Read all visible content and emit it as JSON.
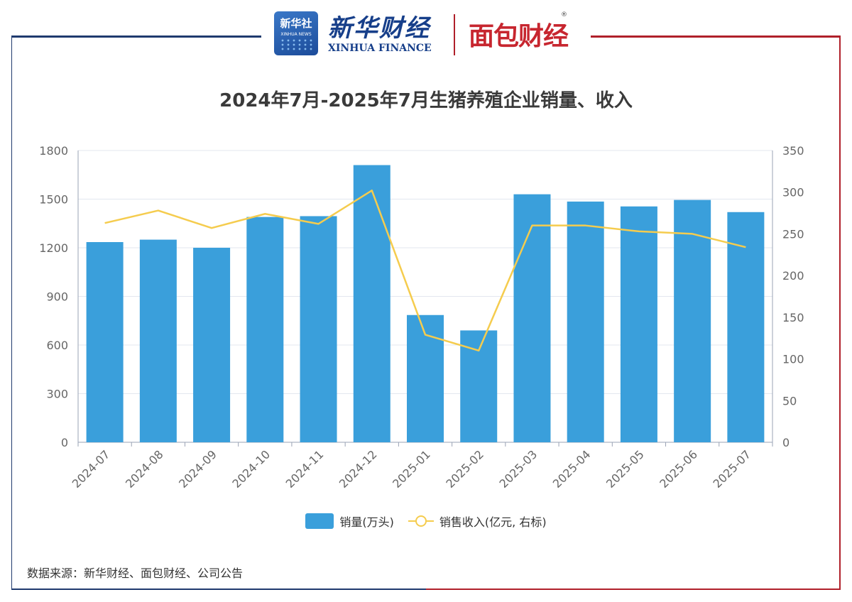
{
  "header": {
    "logo_xinhua_badge": "新华社",
    "logo_xinhua_badge_en": "XINHUA NEWS",
    "logo_xinhua_cn": "新华财经",
    "logo_xinhua_en": "XINHUA FINANCE",
    "logo_mianbao": "面包财经",
    "reg_mark": "®"
  },
  "footer": {
    "source": "数据来源：新华财经、面包财经、公司公告"
  },
  "colors": {
    "bar": "#3a9fdb",
    "line": "#f5cc4e",
    "grid": "#e3e7ef",
    "axis": "#666666"
  },
  "chart_data": {
    "type": "bar",
    "title": "2024年7月-2025年7月生猪养殖企业销量、收入",
    "categories": [
      "2024-07",
      "2024-08",
      "2024-09",
      "2024-10",
      "2024-11",
      "2024-12",
      "2025-01",
      "2025-02",
      "2025-03",
      "2025-04",
      "2025-05",
      "2025-06",
      "2025-07"
    ],
    "y_left": {
      "min": 0,
      "max": 1800,
      "ticks": [
        0,
        300,
        600,
        900,
        1200,
        1500,
        1800
      ]
    },
    "y_right": {
      "min": 0,
      "max": 350,
      "ticks": [
        0,
        50,
        100,
        150,
        200,
        250,
        300,
        350
      ]
    },
    "series": [
      {
        "name": "销量(万头)",
        "type": "bar",
        "axis": "left",
        "values": [
          1235,
          1250,
          1200,
          1390,
          1395,
          1710,
          785,
          690,
          1530,
          1485,
          1455,
          1495,
          1420
        ]
      },
      {
        "name": "销售收入(亿元, 右标)",
        "type": "line",
        "axis": "right",
        "values": [
          263,
          278,
          257,
          274,
          262,
          302,
          129,
          110,
          260,
          260,
          253,
          250,
          234
        ]
      }
    ],
    "legend_position": "bottom",
    "grid": true
  }
}
